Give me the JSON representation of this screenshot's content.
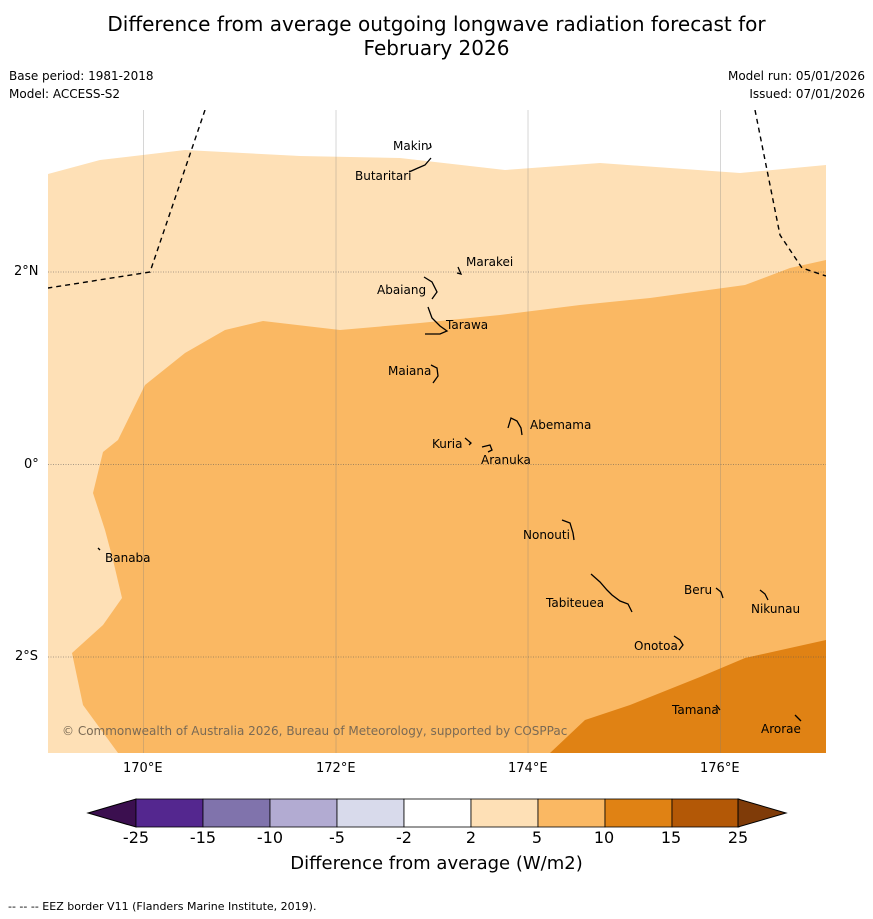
{
  "title": {
    "line1": "Difference from average outgoing longwave radiation forecast for",
    "line2": "February 2026"
  },
  "meta": {
    "base_period": "Base period: 1981-2018",
    "model": "Model: ACCESS-S2",
    "model_run": "Model run: 05/01/2026",
    "issued": "Issued: 07/01/2026"
  },
  "map": {
    "lon_labels": [
      "170°E",
      "172°E",
      "174°E",
      "176°E"
    ],
    "lat_labels": [
      "2°N",
      "0°",
      "2°S"
    ],
    "islands": [
      "Makin",
      "Butaritari",
      "Marakei",
      "Abaiang",
      "Tarawa",
      "Maiana",
      "Abemama",
      "Kuria",
      "Aranuka",
      "Banaba",
      "Nonouti",
      "Beru",
      "Nikunau",
      "Tabiteuea",
      "Onotoa",
      "Tamana",
      "Arorae"
    ],
    "copyright": "© Commonwealth of Australia 2026, Bureau of Meteorology, supported by COSPPac"
  },
  "colorbar": {
    "ticks": [
      "-25",
      "-15",
      "-10",
      "-5",
      "-2",
      "2",
      "5",
      "10",
      "15",
      "25"
    ],
    "colors": [
      "#3b0f4f",
      "#54278f",
      "#8073ac",
      "#b2abd2",
      "#d8daeb",
      "#ffffff",
      "#fee0b6",
      "#fab863",
      "#e08214",
      "#b35806",
      "#7f3b08"
    ],
    "title": "Difference from average (W/m2)"
  },
  "footnote": "--  --  -- EEZ border V11 (Flanders Marine Institute, 2019)."
}
